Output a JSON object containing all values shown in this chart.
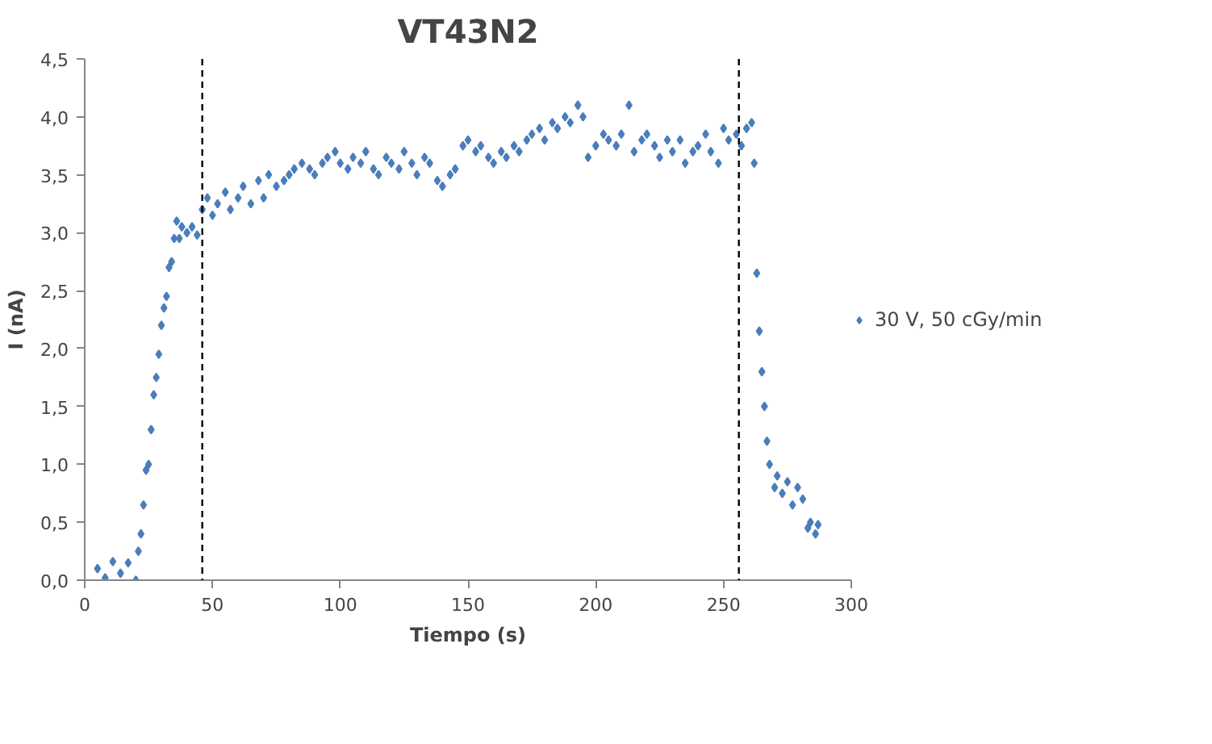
{
  "chart_data": {
    "type": "scatter",
    "title": "VT43N2",
    "xlabel": "Tiempo (s)",
    "ylabel": "I (nA)",
    "xlim": [
      0,
      300
    ],
    "xticks": [
      0,
      50,
      100,
      150,
      200,
      250,
      300
    ],
    "ylim": [
      0,
      4.5
    ],
    "yticks": [
      {
        "value": 0,
        "label": "0,0"
      },
      {
        "value": 0.5,
        "label": "0,5"
      },
      {
        "value": 1,
        "label": "1,0"
      },
      {
        "value": 1.5,
        "label": "1,5"
      },
      {
        "value": 2,
        "label": "2,0"
      },
      {
        "value": 2.5,
        "label": "2,5"
      },
      {
        "value": 3,
        "label": "3,0"
      },
      {
        "value": 3.5,
        "label": "3,5"
      },
      {
        "value": 4,
        "label": "4,0"
      },
      {
        "value": 4.5,
        "label": "4,5"
      }
    ],
    "marker": "diamond",
    "legend": "right",
    "ref_lines": [
      {
        "axis": "x",
        "value": 46,
        "color": "#000000",
        "line_style": "dashed"
      },
      {
        "axis": "x",
        "value": 256,
        "color": "#000000",
        "line_style": "dashed"
      }
    ],
    "series": [
      {
        "name": "30 V, 50 cGy/min",
        "color": "#4a7ebb",
        "x": [
          5,
          8,
          11,
          14,
          17,
          20,
          21,
          22,
          23,
          24,
          25,
          26,
          27,
          28,
          29,
          30,
          31,
          32,
          33,
          34,
          35,
          36,
          37,
          38,
          40,
          42,
          44,
          46,
          48,
          50,
          52,
          55,
          57,
          60,
          62,
          65,
          68,
          70,
          72,
          75,
          78,
          80,
          82,
          85,
          88,
          90,
          93,
          95,
          98,
          100,
          103,
          105,
          108,
          110,
          113,
          115,
          118,
          120,
          123,
          125,
          128,
          130,
          133,
          135,
          138,
          140,
          143,
          145,
          148,
          150,
          153,
          155,
          158,
          160,
          163,
          165,
          168,
          170,
          173,
          175,
          178,
          180,
          183,
          185,
          188,
          190,
          193,
          195,
          197,
          200,
          203,
          205,
          208,
          210,
          213,
          215,
          218,
          220,
          223,
          225,
          228,
          230,
          233,
          235,
          238,
          240,
          243,
          245,
          248,
          250,
          252,
          255,
          257,
          259,
          261,
          262,
          263,
          264,
          265,
          266,
          267,
          268,
          270,
          271,
          273,
          275,
          277,
          279,
          281,
          283,
          284,
          286,
          287
        ],
        "values": [
          0.1,
          0.02,
          0.16,
          0.06,
          0.15,
          0.0,
          0.25,
          0.4,
          0.65,
          0.95,
          1.0,
          1.3,
          1.6,
          1.75,
          1.95,
          2.2,
          2.35,
          2.45,
          2.7,
          2.75,
          2.95,
          3.1,
          2.95,
          3.05,
          3.0,
          3.05,
          2.98,
          3.2,
          3.3,
          3.15,
          3.25,
          3.35,
          3.2,
          3.3,
          3.4,
          3.25,
          3.45,
          3.3,
          3.5,
          3.4,
          3.45,
          3.5,
          3.55,
          3.6,
          3.55,
          3.5,
          3.6,
          3.65,
          3.7,
          3.6,
          3.55,
          3.65,
          3.6,
          3.7,
          3.55,
          3.5,
          3.65,
          3.6,
          3.55,
          3.7,
          3.6,
          3.5,
          3.65,
          3.6,
          3.45,
          3.4,
          3.5,
          3.55,
          3.75,
          3.8,
          3.7,
          3.75,
          3.65,
          3.6,
          3.7,
          3.65,
          3.75,
          3.7,
          3.8,
          3.85,
          3.9,
          3.8,
          3.95,
          3.9,
          4.0,
          3.95,
          4.1,
          4.0,
          3.65,
          3.75,
          3.85,
          3.8,
          3.75,
          3.85,
          4.1,
          3.7,
          3.8,
          3.85,
          3.75,
          3.65,
          3.8,
          3.7,
          3.8,
          3.6,
          3.7,
          3.75,
          3.85,
          3.7,
          3.6,
          3.9,
          3.8,
          3.85,
          3.75,
          3.9,
          3.95,
          3.6,
          2.65,
          2.15,
          1.8,
          1.5,
          1.2,
          1.0,
          0.8,
          0.9,
          0.75,
          0.85,
          0.65,
          0.8,
          0.7,
          0.45,
          0.5,
          0.4,
          0.48
        ]
      }
    ]
  }
}
